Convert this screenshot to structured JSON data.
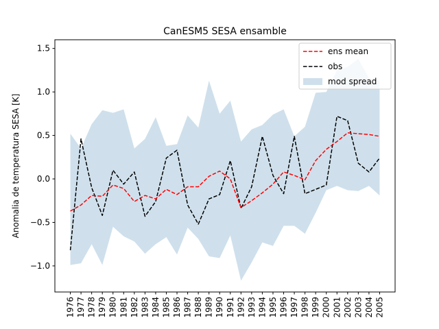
{
  "chart_data": {
    "type": "line",
    "title": "CanESM5 SESA ensamble",
    "xlabel": "",
    "ylabel": "Anomalia de temperatura SESA [K]",
    "ylim": [
      -1.3,
      1.6
    ],
    "yticks": [
      -1.0,
      -0.5,
      0.0,
      0.5,
      1.0,
      1.5
    ],
    "ytick_labels": [
      "−1.0",
      "−0.5",
      "0.0",
      "0.5",
      "1.0",
      "1.5"
    ],
    "grid": false,
    "legend_position": "top-right",
    "x": [
      1976,
      1977,
      1978,
      1979,
      1980,
      1981,
      1982,
      1983,
      1984,
      1985,
      1986,
      1987,
      1988,
      1989,
      1990,
      1991,
      1992,
      1993,
      1994,
      1995,
      1996,
      1997,
      1998,
      1999,
      2000,
      2001,
      2002,
      2003,
      2004,
      2005
    ],
    "series": [
      {
        "name": "ens mean",
        "style": "dashed",
        "color": "#ff0000",
        "values": [
          -0.37,
          -0.3,
          -0.19,
          -0.2,
          -0.07,
          -0.11,
          -0.26,
          -0.19,
          -0.23,
          -0.12,
          -0.18,
          -0.09,
          -0.09,
          0.03,
          0.09,
          0.0,
          -0.33,
          -0.25,
          -0.16,
          -0.06,
          0.08,
          0.04,
          -0.01,
          0.21,
          0.34,
          0.43,
          0.53,
          0.52,
          0.51,
          0.49
        ]
      },
      {
        "name": "obs",
        "style": "dashed",
        "color": "#000000",
        "values": [
          -0.82,
          0.46,
          -0.1,
          -0.42,
          0.1,
          -0.06,
          0.08,
          -0.43,
          -0.26,
          0.24,
          0.33,
          -0.3,
          -0.52,
          -0.23,
          -0.18,
          0.21,
          -0.34,
          -0.09,
          0.49,
          0.04,
          -0.17,
          0.49,
          -0.17,
          -0.12,
          -0.07,
          0.72,
          0.67,
          0.18,
          0.08,
          0.24
        ]
      },
      {
        "name": "mod spread",
        "style": "band",
        "color": "#cfe0ec",
        "upper": [
          0.52,
          0.35,
          0.63,
          0.79,
          0.76,
          0.8,
          0.35,
          0.46,
          0.71,
          0.38,
          0.4,
          0.73,
          0.59,
          1.13,
          0.75,
          0.9,
          0.43,
          0.57,
          0.62,
          0.74,
          0.8,
          0.49,
          0.6,
          0.99,
          1.0,
          1.25,
          1.29,
          1.38,
          1.16,
          1.13
        ],
        "lower": [
          -0.99,
          -0.97,
          -0.75,
          -0.99,
          -0.55,
          -0.66,
          -0.72,
          -0.86,
          -0.75,
          -0.67,
          -0.87,
          -0.56,
          -0.69,
          -0.89,
          -0.91,
          -0.65,
          -1.17,
          -0.96,
          -0.73,
          -0.77,
          -0.54,
          -0.54,
          -0.63,
          -0.39,
          -0.13,
          -0.08,
          -0.13,
          -0.14,
          -0.08,
          -0.19
        ]
      }
    ]
  }
}
